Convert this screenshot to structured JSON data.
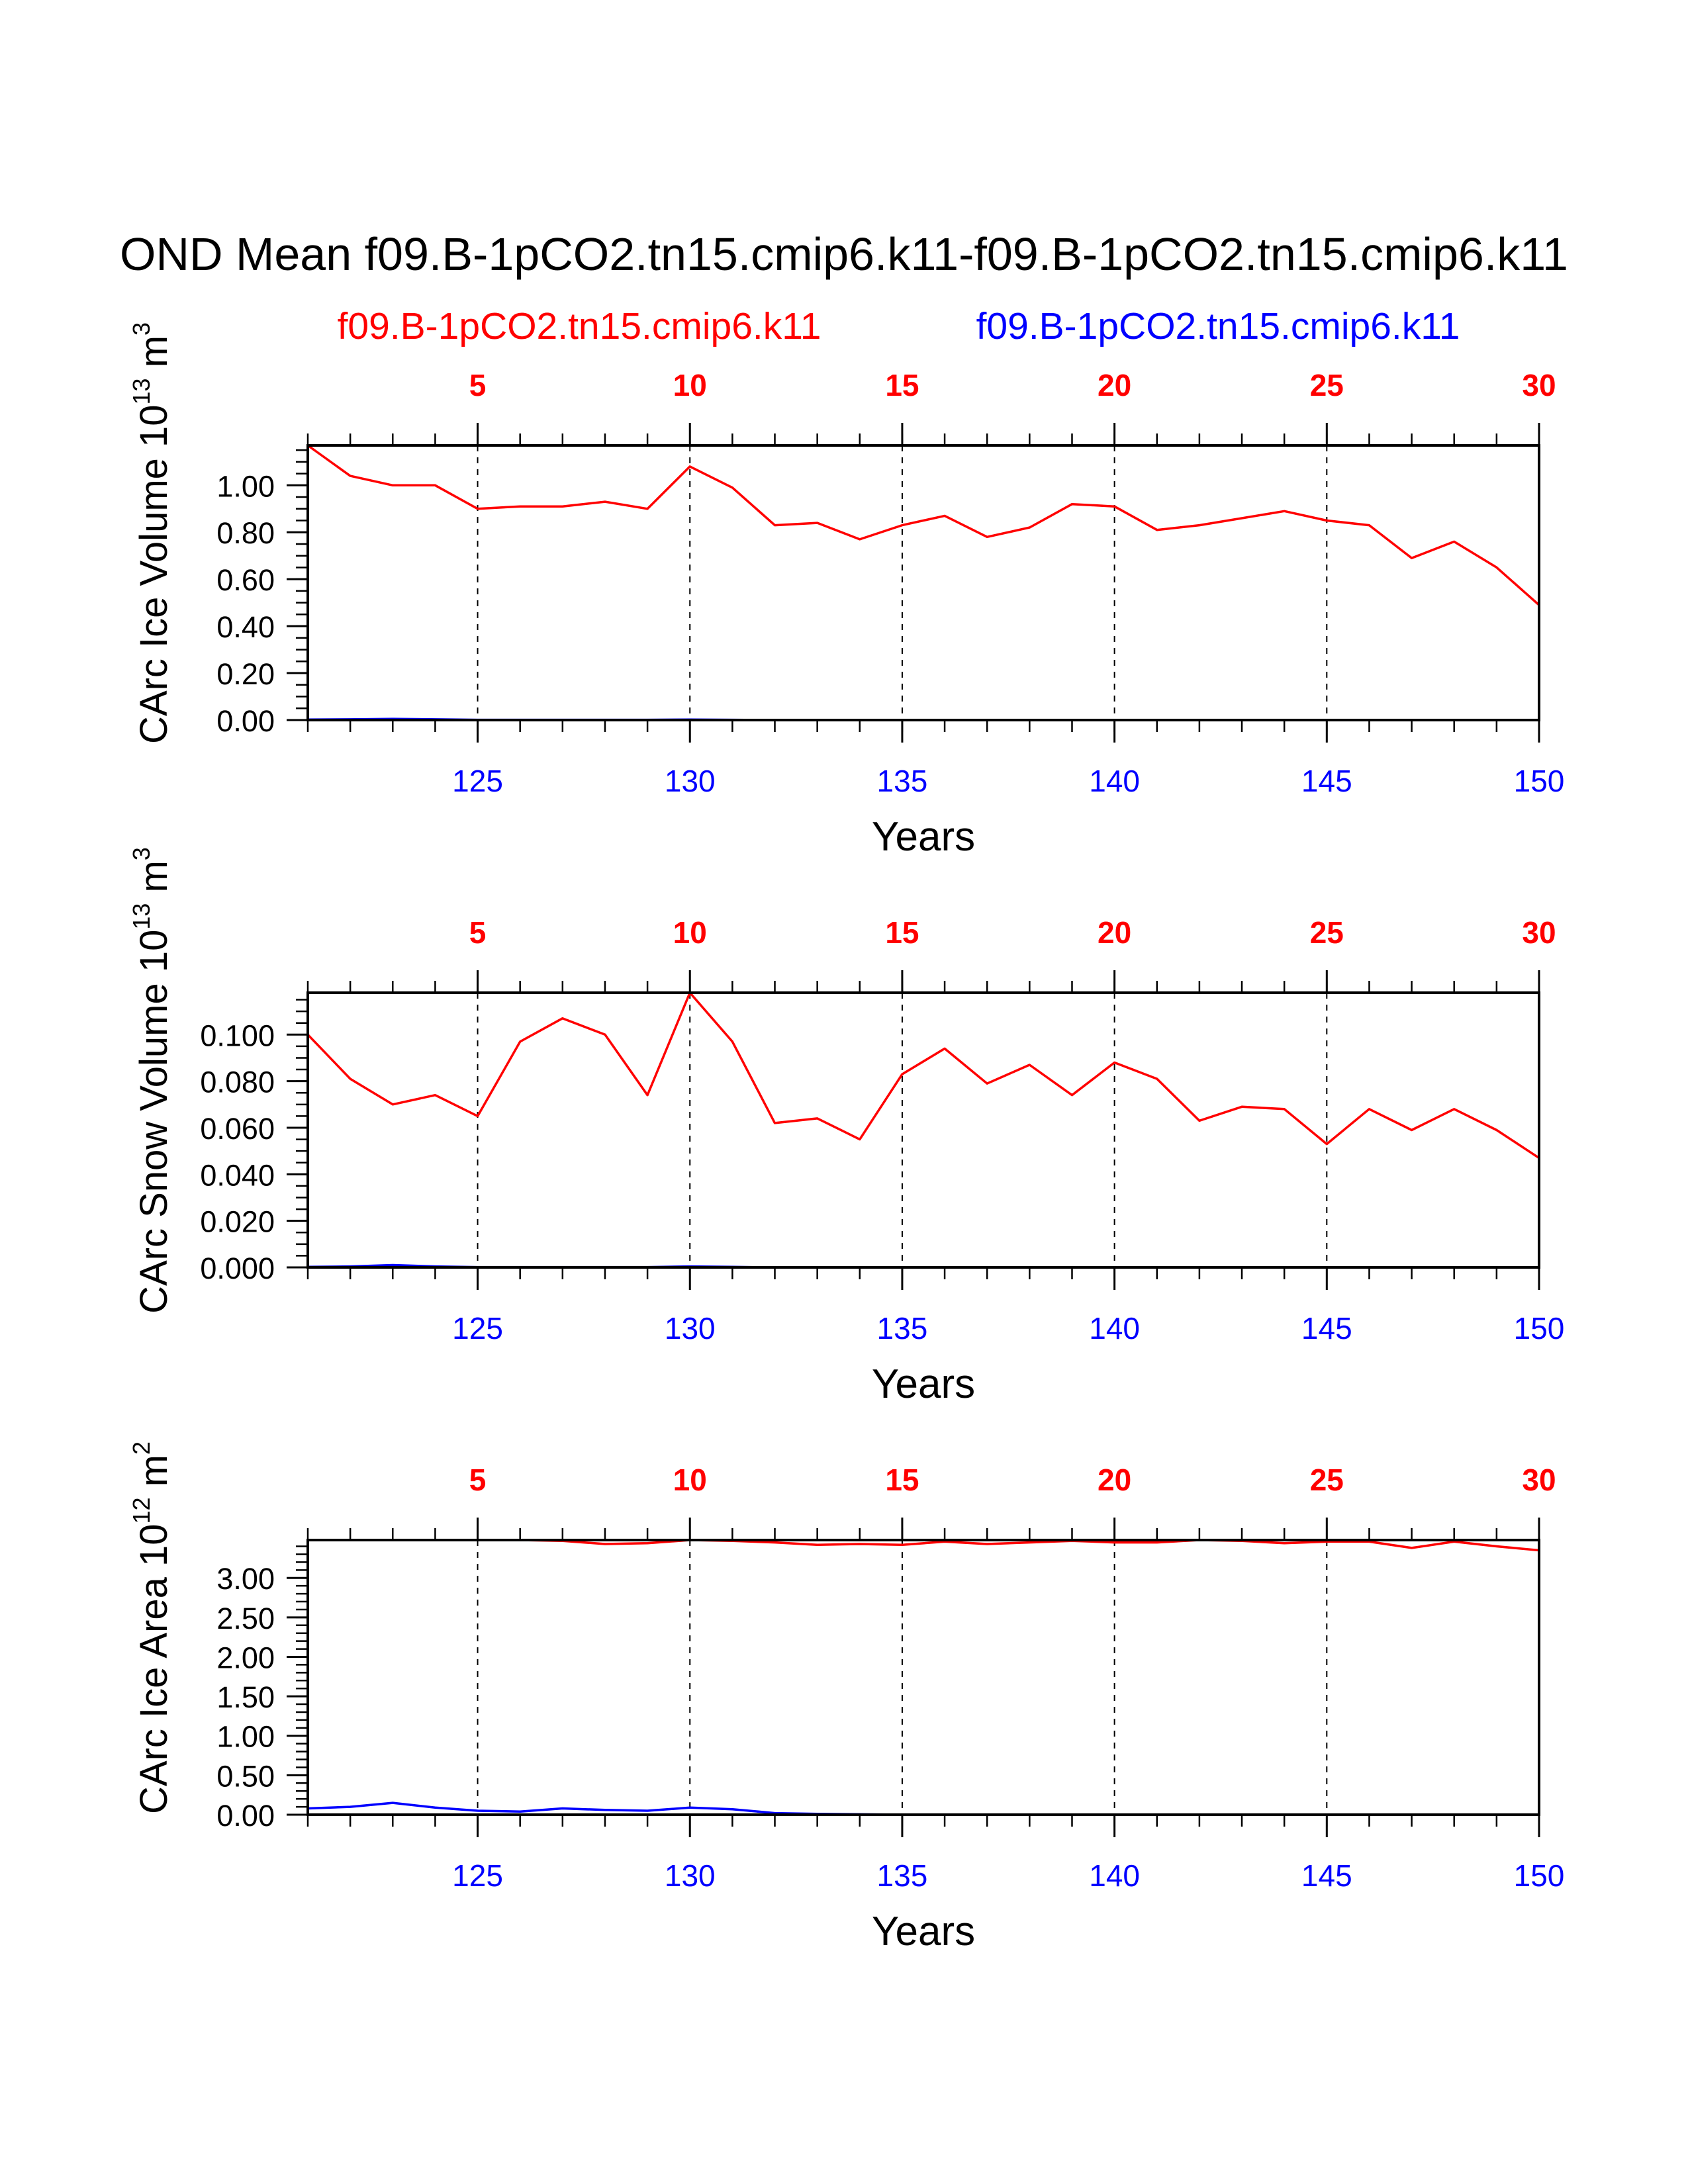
{
  "title": "OND Mean f09.B-1pCO2.tn15.cmip6.k11-f09.B-1pCO2.tn15.cmip6.k11",
  "legend": {
    "case1": "f09.B-1pCO2.tn15.cmip6.k11",
    "case2": "f09.B-1pCO2.tn15.cmip6.k11",
    "case1_color": "#ff0000",
    "case2_color": "#0000ff"
  },
  "chart_data": [
    {
      "type": "line",
      "ylabel_main": "CArc Ice Volume 10",
      "ylabel_exp": "13",
      "ylabel_unit": " m",
      "ylabel_unit_exp": "3",
      "xlabel": "Years",
      "xlim": [
        121,
        150
      ],
      "ylim": [
        0,
        1.17
      ],
      "yticks": [
        0.0,
        0.2,
        0.4,
        0.6,
        0.8,
        1.0
      ],
      "ytick_labels": [
        "0.00",
        "0.20",
        "0.40",
        "0.60",
        "0.80",
        "1.00"
      ],
      "yminor": 0.05,
      "xticks_bottom": [
        125,
        130,
        135,
        140,
        145,
        150
      ],
      "xticks_bottom_labels": [
        "125",
        "130",
        "135",
        "140",
        "145",
        "150"
      ],
      "xticks_top": [
        125,
        130,
        135,
        140,
        145,
        150
      ],
      "xticks_top_labels": [
        "5",
        "10",
        "15",
        "20",
        "25",
        "30"
      ],
      "series": [
        {
          "name": "f09.B-1pCO2.tn15.cmip6.k11 (red)",
          "color": "#ff0000",
          "x": [
            121,
            122,
            123,
            124,
            125,
            126,
            127,
            128,
            129,
            130,
            131,
            132,
            133,
            134,
            135,
            136,
            137,
            138,
            139,
            140,
            141,
            142,
            143,
            144,
            145,
            146,
            147,
            148,
            149,
            150
          ],
          "values": [
            1.17,
            1.04,
            1.0,
            1.0,
            0.9,
            0.91,
            0.91,
            0.93,
            0.9,
            1.08,
            0.99,
            0.83,
            0.84,
            0.77,
            0.83,
            0.87,
            0.78,
            0.82,
            0.92,
            0.91,
            0.81,
            0.83,
            0.86,
            0.89,
            0.85,
            0.83,
            0.69,
            0.76,
            0.65,
            0.49
          ]
        },
        {
          "name": "f09.B-1pCO2.tn15.cmip6.k11 (blue)",
          "color": "#0000ff",
          "x": [
            121,
            122,
            123,
            124,
            125,
            126,
            127,
            128,
            129,
            130,
            131,
            132,
            133,
            134,
            135,
            136,
            137,
            138,
            139,
            140,
            141,
            142,
            143,
            144,
            145,
            146,
            147,
            148,
            149,
            150
          ],
          "values": [
            0.002,
            0.003,
            0.005,
            0.003,
            0.001,
            0.001,
            0.001,
            0.001,
            0.001,
            0.002,
            0.001,
            0,
            0,
            0,
            0,
            0,
            0,
            0,
            0,
            0,
            0,
            0,
            0,
            0,
            0,
            0,
            0,
            0,
            0,
            0
          ]
        }
      ]
    },
    {
      "type": "line",
      "ylabel_main": "CArc Snow Volume 10",
      "ylabel_exp": "13",
      "ylabel_unit": " m",
      "ylabel_unit_exp": "3",
      "xlabel": "Years",
      "xlim": [
        121,
        150
      ],
      "ylim": [
        0,
        0.118
      ],
      "yticks": [
        0.0,
        0.02,
        0.04,
        0.06,
        0.08,
        0.1
      ],
      "ytick_labels": [
        "0.000",
        "0.020",
        "0.040",
        "0.060",
        "0.080",
        "0.100"
      ],
      "yminor": 0.005,
      "xticks_bottom": [
        125,
        130,
        135,
        140,
        145,
        150
      ],
      "xticks_bottom_labels": [
        "125",
        "130",
        "135",
        "140",
        "145",
        "150"
      ],
      "xticks_top": [
        125,
        130,
        135,
        140,
        145,
        150
      ],
      "xticks_top_labels": [
        "5",
        "10",
        "15",
        "20",
        "25",
        "30"
      ],
      "series": [
        {
          "name": "f09.B-1pCO2.tn15.cmip6.k11 (red)",
          "color": "#ff0000",
          "x": [
            121,
            122,
            123,
            124,
            125,
            126,
            127,
            128,
            129,
            130,
            131,
            132,
            133,
            134,
            135,
            136,
            137,
            138,
            139,
            140,
            141,
            142,
            143,
            144,
            145,
            146,
            147,
            148,
            149,
            150
          ],
          "values": [
            0.1,
            0.081,
            0.07,
            0.074,
            0.065,
            0.097,
            0.107,
            0.1,
            0.074,
            0.118,
            0.097,
            0.062,
            0.064,
            0.055,
            0.083,
            0.094,
            0.079,
            0.087,
            0.074,
            0.088,
            0.081,
            0.063,
            0.069,
            0.068,
            0.053,
            0.068,
            0.059,
            0.068,
            0.059,
            0.047
          ]
        },
        {
          "name": "f09.B-1pCO2.tn15.cmip6.k11 (blue)",
          "color": "#0000ff",
          "x": [
            121,
            122,
            123,
            124,
            125,
            126,
            127,
            128,
            129,
            130,
            131,
            132,
            133,
            134,
            135,
            136,
            137,
            138,
            139,
            140,
            141,
            142,
            143,
            144,
            145,
            146,
            147,
            148,
            149,
            150
          ],
          "values": [
            0.0002,
            0.0004,
            0.001,
            0.0004,
            0.0001,
            0.0001,
            0.0001,
            0.0001,
            0.0001,
            0.0004,
            0.0002,
            0,
            0,
            0,
            0,
            0,
            0,
            0,
            0,
            0,
            0,
            0,
            0,
            0,
            0,
            0,
            0,
            0,
            0,
            0
          ]
        }
      ]
    },
    {
      "type": "line",
      "ylabel_main": "CArc Ice Area 10",
      "ylabel_exp": "12",
      "ylabel_unit": " m",
      "ylabel_unit_exp": "2",
      "xlabel": "Years",
      "xlim": [
        121,
        150
      ],
      "ylim": [
        0,
        3.48
      ],
      "yticks": [
        0.0,
        0.5,
        1.0,
        1.5,
        2.0,
        2.5,
        3.0
      ],
      "ytick_labels": [
        "0.00",
        "0.50",
        "1.00",
        "1.50",
        "2.00",
        "2.50",
        "3.00"
      ],
      "yminor": 0.1,
      "xticks_bottom": [
        125,
        130,
        135,
        140,
        145,
        150
      ],
      "xticks_bottom_labels": [
        "125",
        "130",
        "135",
        "140",
        "145",
        "150"
      ],
      "xticks_top": [
        125,
        130,
        135,
        140,
        145,
        150
      ],
      "xticks_top_labels": [
        "5",
        "10",
        "15",
        "20",
        "25",
        "30"
      ],
      "series": [
        {
          "name": "f09.B-1pCO2.tn15.cmip6.k11 (red)",
          "color": "#ff0000",
          "x": [
            121,
            122,
            123,
            124,
            125,
            126,
            127,
            128,
            129,
            130,
            131,
            132,
            133,
            134,
            135,
            136,
            137,
            138,
            139,
            140,
            141,
            142,
            143,
            144,
            145,
            146,
            147,
            148,
            149,
            150
          ],
          "values": [
            3.48,
            3.48,
            3.48,
            3.48,
            3.48,
            3.48,
            3.47,
            3.43,
            3.44,
            3.48,
            3.47,
            3.45,
            3.42,
            3.43,
            3.42,
            3.46,
            3.43,
            3.45,
            3.47,
            3.45,
            3.45,
            3.48,
            3.47,
            3.44,
            3.46,
            3.46,
            3.38,
            3.46,
            3.4,
            3.35
          ]
        },
        {
          "name": "f09.B-1pCO2.tn15.cmip6.k11 (blue)",
          "color": "#0000ff",
          "x": [
            121,
            122,
            123,
            124,
            125,
            126,
            127,
            128,
            129,
            130,
            131,
            132,
            133,
            134,
            135,
            136,
            137,
            138,
            139,
            140,
            141,
            142,
            143,
            144,
            145,
            146,
            147,
            148,
            149,
            150
          ],
          "values": [
            0.08,
            0.1,
            0.15,
            0.09,
            0.05,
            0.04,
            0.08,
            0.06,
            0.05,
            0.09,
            0.07,
            0.02,
            0.01,
            0.005,
            0,
            0,
            0,
            0,
            0,
            0,
            0,
            0,
            0,
            0,
            0,
            0,
            0,
            0,
            0,
            0
          ]
        }
      ]
    }
  ]
}
